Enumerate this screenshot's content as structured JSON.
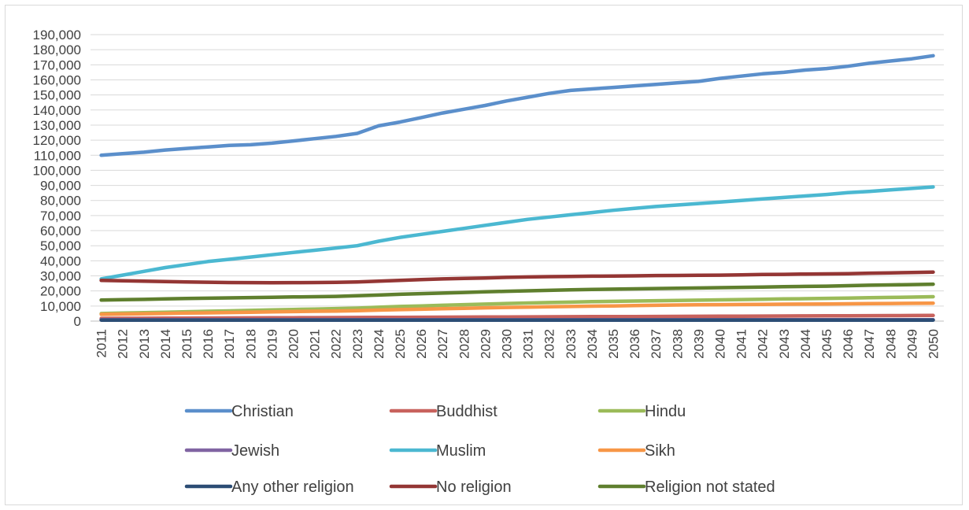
{
  "chart_data": {
    "type": "line",
    "title": "",
    "xlabel": "",
    "ylabel": "",
    "ylim": [
      0,
      190000
    ],
    "yticks": [
      0,
      10000,
      20000,
      30000,
      40000,
      50000,
      60000,
      70000,
      80000,
      90000,
      100000,
      110000,
      120000,
      130000,
      140000,
      150000,
      160000,
      170000,
      180000,
      190000
    ],
    "ytick_labels": [
      "0",
      "10,000",
      "20,000",
      "30,000",
      "40,000",
      "50,000",
      "60,000",
      "70,000",
      "80,000",
      "90,000",
      "100,000",
      "110,000",
      "120,000",
      "130,000",
      "140,000",
      "150,000",
      "160,000",
      "170,000",
      "180,000",
      "190,000"
    ],
    "x": [
      "2011",
      "2012",
      "2013",
      "2014",
      "2015",
      "2016",
      "2017",
      "2018",
      "2019",
      "2020",
      "2021",
      "2022",
      "2023",
      "2024",
      "2025",
      "2026",
      "2027",
      "2028",
      "2029",
      "2030",
      "2031",
      "2032",
      "2033",
      "2034",
      "2035",
      "2036",
      "2037",
      "2038",
      "2039",
      "2040",
      "2041",
      "2042",
      "2043",
      "2044",
      "2045",
      "2046",
      "2047",
      "2048",
      "2049",
      "2050"
    ],
    "grid": true,
    "legend_position": "bottom",
    "series": [
      {
        "name": "Christian",
        "color": "#5b8fcb",
        "values": [
          110000,
          111000,
          112000,
          113500,
          114500,
          115500,
          116500,
          117000,
          118000,
          119500,
          121000,
          122500,
          124500,
          129500,
          132000,
          135000,
          138000,
          140500,
          143000,
          146000,
          148500,
          151000,
          153000,
          154000,
          155000,
          156000,
          157000,
          158000,
          159000,
          161000,
          162500,
          164000,
          165000,
          166500,
          167500,
          169000,
          171000,
          172500,
          174000,
          176000
        ]
      },
      {
        "name": "Buddhist",
        "color": "#c8625d",
        "values": [
          1800,
          1850,
          1900,
          1950,
          2000,
          2050,
          2100,
          2150,
          2200,
          2250,
          2300,
          2350,
          2400,
          2450,
          2500,
          2550,
          2600,
          2650,
          2700,
          2750,
          2800,
          2850,
          2900,
          2950,
          3000,
          3050,
          3100,
          3150,
          3200,
          3250,
          3300,
          3350,
          3400,
          3450,
          3500,
          3550,
          3600,
          3650,
          3700,
          3750
        ]
      },
      {
        "name": "Hindu",
        "color": "#9bbb59",
        "values": [
          5000,
          5300,
          5600,
          5900,
          6200,
          6500,
          6800,
          7100,
          7400,
          7700,
          8000,
          8300,
          8600,
          9200,
          9700,
          10100,
          10500,
          10900,
          11300,
          11700,
          12000,
          12300,
          12600,
          12900,
          13100,
          13300,
          13500,
          13700,
          13900,
          14100,
          14300,
          14500,
          14700,
          14900,
          15100,
          15300,
          15500,
          15700,
          15900,
          16200
        ]
      },
      {
        "name": "Jewish",
        "color": "#8064a2",
        "values": [
          900,
          900,
          900,
          900,
          900,
          900,
          900,
          900,
          900,
          900,
          900,
          900,
          900,
          900,
          900,
          900,
          900,
          900,
          900,
          900,
          900,
          900,
          900,
          900,
          900,
          900,
          900,
          900,
          900,
          900,
          900,
          900,
          900,
          900,
          900,
          900,
          900,
          900,
          900,
          900
        ]
      },
      {
        "name": "Muslim",
        "color": "#4bb8d1",
        "values": [
          28000,
          30500,
          33000,
          35500,
          37500,
          39500,
          41000,
          42500,
          44000,
          45500,
          47000,
          48500,
          50000,
          53000,
          55500,
          57500,
          59500,
          61500,
          63500,
          65500,
          67500,
          69000,
          70500,
          72000,
          73500,
          74800,
          76000,
          77000,
          78000,
          79000,
          80000,
          81000,
          82000,
          83000,
          84000,
          85200,
          86000,
          87000,
          88000,
          89000
        ]
      },
      {
        "name": "Sikh",
        "color": "#f79646",
        "values": [
          4500,
          4700,
          4900,
          5100,
          5300,
          5500,
          5700,
          5900,
          6100,
          6300,
          6500,
          6700,
          6900,
          7300,
          7600,
          7900,
          8200,
          8500,
          8800,
          9100,
          9300,
          9500,
          9700,
          9900,
          10100,
          10300,
          10500,
          10700,
          10800,
          10900,
          11000,
          11100,
          11200,
          11300,
          11400,
          11500,
          11600,
          11700,
          11800,
          11900
        ]
      },
      {
        "name": "Any other religion",
        "color": "#2c4d75",
        "values": [
          700,
          700,
          700,
          700,
          700,
          700,
          700,
          700,
          700,
          700,
          700,
          700,
          700,
          700,
          700,
          700,
          700,
          700,
          700,
          700,
          700,
          700,
          700,
          700,
          700,
          700,
          700,
          700,
          700,
          700,
          700,
          700,
          700,
          700,
          700,
          700,
          700,
          700,
          700,
          700
        ]
      },
      {
        "name": "No religion",
        "color": "#943634",
        "values": [
          27000,
          26800,
          26500,
          26200,
          26000,
          25800,
          25600,
          25500,
          25400,
          25500,
          25600,
          25700,
          26000,
          26500,
          27000,
          27500,
          28000,
          28300,
          28600,
          29000,
          29300,
          29500,
          29600,
          29800,
          29900,
          30000,
          30200,
          30300,
          30400,
          30500,
          30700,
          30900,
          31000,
          31200,
          31300,
          31500,
          31800,
          32000,
          32200,
          32500
        ]
      },
      {
        "name": "Religion not stated",
        "color": "#5f7f2e",
        "values": [
          14000,
          14200,
          14400,
          14700,
          15000,
          15200,
          15400,
          15600,
          15800,
          16000,
          16200,
          16400,
          16800,
          17300,
          17800,
          18200,
          18600,
          19000,
          19400,
          19800,
          20100,
          20400,
          20700,
          21000,
          21200,
          21400,
          21600,
          21800,
          22000,
          22200,
          22400,
          22600,
          22800,
          23000,
          23200,
          23500,
          23800,
          24000,
          24200,
          24500
        ]
      }
    ]
  }
}
